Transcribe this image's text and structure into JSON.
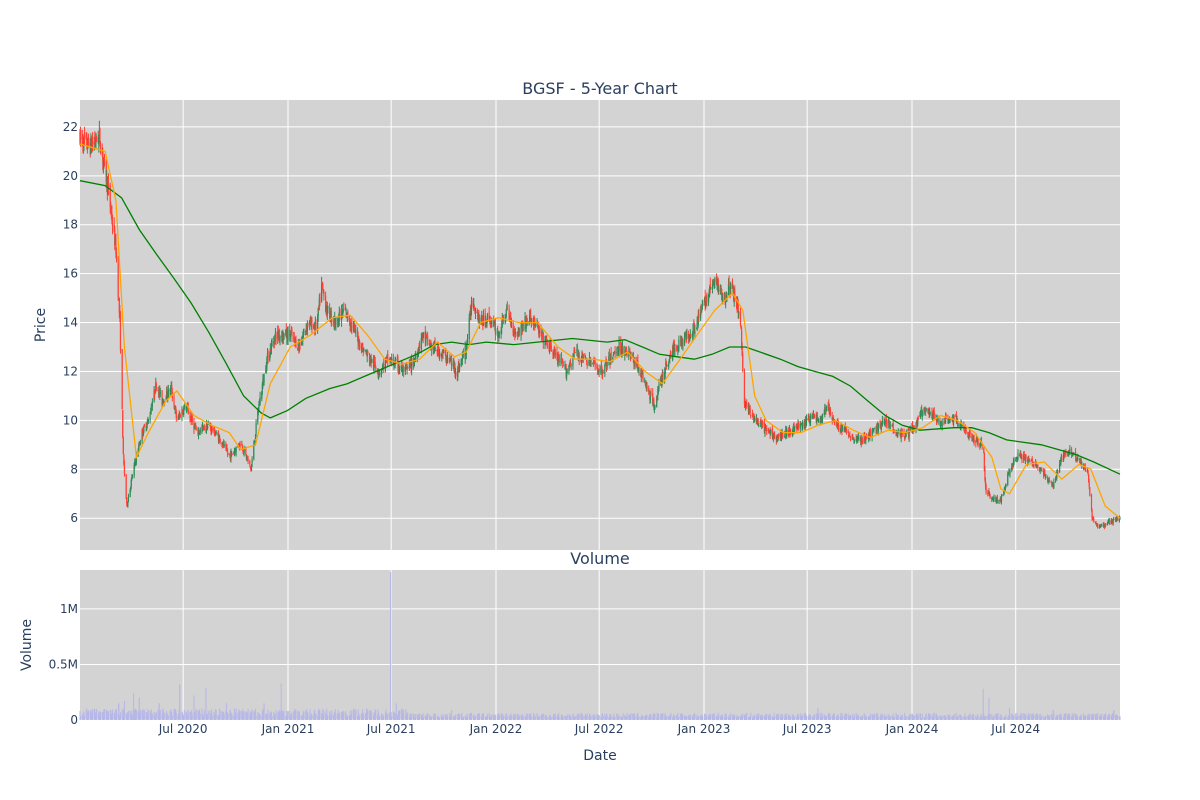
{
  "chart_data": [
    {
      "type": "candlestick",
      "title": "BGSF - 5-Year Chart",
      "ylabel": "Price",
      "xlabel": "",
      "x_range": [
        "2020-01-02",
        "2024-12-31"
      ],
      "ylim": [
        4.7,
        23.1
      ],
      "yticks": [
        6,
        8,
        10,
        12,
        14,
        16,
        18,
        20,
        22
      ],
      "grid": true,
      "background": "#d3d3d3",
      "up_color": "#2e8b57",
      "down_color": "#ff4136",
      "ma_short_color": "#ffa500",
      "ma_long_color": "#008000",
      "price_anchors": [
        [
          "2020-01-02",
          21.5
        ],
        [
          "2020-01-20",
          21.2
        ],
        [
          "2020-02-05",
          21.6
        ],
        [
          "2020-02-20",
          19.5
        ],
        [
          "2020-03-05",
          17.0
        ],
        [
          "2020-03-12",
          14.0
        ],
        [
          "2020-03-18",
          8.5
        ],
        [
          "2020-03-24",
          6.5
        ],
        [
          "2020-04-05",
          8.0
        ],
        [
          "2020-04-20",
          9.5
        ],
        [
          "2020-05-01",
          10.0
        ],
        [
          "2020-05-15",
          11.5
        ],
        [
          "2020-05-25",
          10.8
        ],
        [
          "2020-06-10",
          11.3
        ],
        [
          "2020-06-20",
          10.0
        ],
        [
          "2020-07-05",
          10.6
        ],
        [
          "2020-07-25",
          9.5
        ],
        [
          "2020-08-15",
          9.8
        ],
        [
          "2020-09-05",
          9.2
        ],
        [
          "2020-09-20",
          8.5
        ],
        [
          "2020-10-10",
          9.1
        ],
        [
          "2020-10-28",
          8.0
        ],
        [
          "2020-11-10",
          10.5
        ],
        [
          "2020-11-25",
          12.5
        ],
        [
          "2020-12-10",
          13.5
        ],
        [
          "2021-01-05",
          13.5
        ],
        [
          "2021-01-20",
          13.0
        ],
        [
          "2021-02-05",
          14.0
        ],
        [
          "2021-02-20",
          13.8
        ],
        [
          "2021-03-01",
          15.5
        ],
        [
          "2021-03-10",
          14.5
        ],
        [
          "2021-03-25",
          14.0
        ],
        [
          "2021-04-10",
          14.5
        ],
        [
          "2021-04-25",
          13.8
        ],
        [
          "2021-05-10",
          13.0
        ],
        [
          "2021-05-25",
          12.5
        ],
        [
          "2021-06-10",
          12.0
        ],
        [
          "2021-06-25",
          12.5
        ],
        [
          "2021-07-10",
          12.3
        ],
        [
          "2021-07-25",
          12.0
        ],
        [
          "2021-08-10",
          12.4
        ],
        [
          "2021-08-25",
          13.5
        ],
        [
          "2021-09-10",
          13.0
        ],
        [
          "2021-09-25",
          12.8
        ],
        [
          "2021-10-10",
          12.5
        ],
        [
          "2021-10-25",
          12.0
        ],
        [
          "2021-11-10",
          13.0
        ],
        [
          "2021-11-20",
          15.0
        ],
        [
          "2021-12-05",
          14.0
        ],
        [
          "2021-12-20",
          14.2
        ],
        [
          "2022-01-05",
          13.5
        ],
        [
          "2022-01-20",
          14.5
        ],
        [
          "2022-02-05",
          13.5
        ],
        [
          "2022-02-20",
          14.0
        ],
        [
          "2022-03-05",
          14.2
        ],
        [
          "2022-03-20",
          13.5
        ],
        [
          "2022-04-05",
          13.0
        ],
        [
          "2022-04-20",
          12.5
        ],
        [
          "2022-05-05",
          12.0
        ],
        [
          "2022-05-20",
          12.8
        ],
        [
          "2022-06-05",
          12.5
        ],
        [
          "2022-06-20",
          12.3
        ],
        [
          "2022-07-05",
          12.0
        ],
        [
          "2022-07-20",
          12.5
        ],
        [
          "2022-08-05",
          13.0
        ],
        [
          "2022-08-20",
          12.8
        ],
        [
          "2022-09-05",
          12.3
        ],
        [
          "2022-09-20",
          11.5
        ],
        [
          "2022-10-05",
          10.6
        ],
        [
          "2022-10-20",
          11.8
        ],
        [
          "2022-11-05",
          12.8
        ],
        [
          "2022-11-20",
          13.2
        ],
        [
          "2022-12-05",
          13.5
        ],
        [
          "2022-12-20",
          14.0
        ],
        [
          "2023-01-05",
          15.0
        ],
        [
          "2023-01-20",
          15.7
        ],
        [
          "2023-02-05",
          15.0
        ],
        [
          "2023-02-15",
          15.5
        ],
        [
          "2023-02-28",
          14.8
        ],
        [
          "2023-03-07",
          13.8
        ],
        [
          "2023-03-12",
          10.8
        ],
        [
          "2023-03-25",
          10.2
        ],
        [
          "2023-04-10",
          9.8
        ],
        [
          "2023-04-25",
          9.5
        ],
        [
          "2023-05-10",
          9.3
        ],
        [
          "2023-05-25",
          9.5
        ],
        [
          "2023-06-10",
          9.7
        ],
        [
          "2023-06-25",
          9.8
        ],
        [
          "2023-07-10",
          10.2
        ],
        [
          "2023-07-25",
          10.0
        ],
        [
          "2023-08-05",
          10.6
        ],
        [
          "2023-08-20",
          9.8
        ],
        [
          "2023-09-05",
          9.6
        ],
        [
          "2023-09-20",
          9.3
        ],
        [
          "2023-10-05",
          9.2
        ],
        [
          "2023-10-20",
          9.4
        ],
        [
          "2023-11-05",
          9.8
        ],
        [
          "2023-11-20",
          10.0
        ],
        [
          "2023-12-05",
          9.5
        ],
        [
          "2023-12-20",
          9.4
        ],
        [
          "2024-01-05",
          9.7
        ],
        [
          "2024-01-20",
          10.4
        ],
        [
          "2024-02-05",
          10.2
        ],
        [
          "2024-02-20",
          9.9
        ],
        [
          "2024-03-05",
          10.1
        ],
        [
          "2024-03-20",
          10.0
        ],
        [
          "2024-04-05",
          9.5
        ],
        [
          "2024-04-20",
          9.2
        ],
        [
          "2024-05-05",
          9.0
        ],
        [
          "2024-05-09",
          7.2
        ],
        [
          "2024-05-20",
          6.8
        ],
        [
          "2024-06-05",
          6.7
        ],
        [
          "2024-06-20",
          8.0
        ],
        [
          "2024-07-05",
          8.6
        ],
        [
          "2024-07-20",
          8.4
        ],
        [
          "2024-08-05",
          8.2
        ],
        [
          "2024-08-20",
          7.8
        ],
        [
          "2024-09-05",
          7.3
        ],
        [
          "2024-09-20",
          8.5
        ],
        [
          "2024-10-05",
          8.8
        ],
        [
          "2024-10-20",
          8.4
        ],
        [
          "2024-11-05",
          7.8
        ],
        [
          "2024-11-12",
          6.0
        ],
        [
          "2024-11-25",
          5.6
        ],
        [
          "2024-12-10",
          5.8
        ],
        [
          "2024-12-31",
          6.0
        ]
      ],
      "ma_short_anchors": [
        [
          "2020-01-02",
          21.3
        ],
        [
          "2020-02-15",
          21.0
        ],
        [
          "2020-03-05",
          19.0
        ],
        [
          "2020-03-20",
          13.0
        ],
        [
          "2020-04-10",
          8.5
        ],
        [
          "2020-05-01",
          9.5
        ],
        [
          "2020-06-01",
          10.8
        ],
        [
          "2020-06-20",
          11.2
        ],
        [
          "2020-07-20",
          10.2
        ],
        [
          "2020-08-20",
          9.8
        ],
        [
          "2020-09-20",
          9.5
        ],
        [
          "2020-10-10",
          8.8
        ],
        [
          "2020-11-05",
          9.0
        ],
        [
          "2020-12-01",
          11.5
        ],
        [
          "2021-01-05",
          13.0
        ],
        [
          "2021-02-10",
          13.5
        ],
        [
          "2021-03-20",
          14.2
        ],
        [
          "2021-04-20",
          14.3
        ],
        [
          "2021-05-20",
          13.5
        ],
        [
          "2021-06-20",
          12.5
        ],
        [
          "2021-07-20",
          12.3
        ],
        [
          "2021-08-20",
          12.5
        ],
        [
          "2021-09-20",
          13.2
        ],
        [
          "2021-10-20",
          12.6
        ],
        [
          "2021-11-10",
          12.8
        ],
        [
          "2021-12-05",
          14.0
        ],
        [
          "2022-01-05",
          14.2
        ],
        [
          "2022-02-10",
          14.0
        ],
        [
          "2022-03-15",
          14.0
        ],
        [
          "2022-04-20",
          13.0
        ],
        [
          "2022-05-20",
          12.5
        ],
        [
          "2022-06-20",
          12.5
        ],
        [
          "2022-07-20",
          12.4
        ],
        [
          "2022-08-20",
          12.8
        ],
        [
          "2022-09-20",
          12.0
        ],
        [
          "2022-10-20",
          11.5
        ],
        [
          "2022-11-20",
          12.5
        ],
        [
          "2022-12-20",
          13.5
        ],
        [
          "2023-01-20",
          14.5
        ],
        [
          "2023-02-20",
          15.2
        ],
        [
          "2023-03-10",
          14.5
        ],
        [
          "2023-03-31",
          11.0
        ],
        [
          "2023-04-20",
          10.0
        ],
        [
          "2023-05-20",
          9.5
        ],
        [
          "2023-06-20",
          9.5
        ],
        [
          "2023-07-20",
          9.8
        ],
        [
          "2023-08-20",
          10.0
        ],
        [
          "2023-09-20",
          9.6
        ],
        [
          "2023-10-20",
          9.3
        ],
        [
          "2023-11-20",
          9.6
        ],
        [
          "2023-12-20",
          9.5
        ],
        [
          "2024-01-20",
          9.7
        ],
        [
          "2024-02-20",
          10.2
        ],
        [
          "2024-03-20",
          10.0
        ],
        [
          "2024-04-20",
          9.5
        ],
        [
          "2024-05-20",
          8.5
        ],
        [
          "2024-06-05",
          7.2
        ],
        [
          "2024-06-20",
          7.0
        ],
        [
          "2024-07-20",
          8.2
        ],
        [
          "2024-08-20",
          8.3
        ],
        [
          "2024-09-20",
          7.6
        ],
        [
          "2024-10-20",
          8.2
        ],
        [
          "2024-11-10",
          8.0
        ],
        [
          "2024-12-05",
          6.5
        ],
        [
          "2024-12-31",
          6.0
        ]
      ],
      "ma_long_anchors": [
        [
          "2020-01-02",
          19.8
        ],
        [
          "2020-02-15",
          19.6
        ],
        [
          "2020-03-15",
          19.1
        ],
        [
          "2020-04-15",
          17.8
        ],
        [
          "2020-05-15",
          16.8
        ],
        [
          "2020-06-15",
          15.8
        ],
        [
          "2020-07-15",
          14.8
        ],
        [
          "2020-08-15",
          13.6
        ],
        [
          "2020-09-15",
          12.3
        ],
        [
          "2020-10-15",
          11.0
        ],
        [
          "2020-11-15",
          10.3
        ],
        [
          "2020-12-01",
          10.1
        ],
        [
          "2020-12-31",
          10.4
        ],
        [
          "2021-02-01",
          10.9
        ],
        [
          "2021-03-15",
          11.3
        ],
        [
          "2021-04-15",
          11.5
        ],
        [
          "2021-05-15",
          11.8
        ],
        [
          "2021-06-15",
          12.1
        ],
        [
          "2021-07-15",
          12.4
        ],
        [
          "2021-08-15",
          12.7
        ],
        [
          "2021-09-15",
          13.1
        ],
        [
          "2021-10-15",
          13.2
        ],
        [
          "2021-11-15",
          13.1
        ],
        [
          "2021-12-15",
          13.2
        ],
        [
          "2022-02-01",
          13.1
        ],
        [
          "2022-03-15",
          13.2
        ],
        [
          "2022-05-15",
          13.35
        ],
        [
          "2022-07-15",
          13.2
        ],
        [
          "2022-08-15",
          13.3
        ],
        [
          "2022-09-15",
          13.0
        ],
        [
          "2022-10-15",
          12.7
        ],
        [
          "2022-11-15",
          12.6
        ],
        [
          "2022-12-15",
          12.5
        ],
        [
          "2023-01-15",
          12.7
        ],
        [
          "2023-02-15",
          13.0
        ],
        [
          "2023-03-15",
          13.0
        ],
        [
          "2023-05-15",
          12.5
        ],
        [
          "2023-06-15",
          12.2
        ],
        [
          "2023-07-15",
          12.0
        ],
        [
          "2023-08-15",
          11.8
        ],
        [
          "2023-09-15",
          11.4
        ],
        [
          "2023-10-15",
          10.8
        ],
        [
          "2023-11-15",
          10.2
        ],
        [
          "2023-12-15",
          9.8
        ],
        [
          "2024-01-15",
          9.6
        ],
        [
          "2024-03-15",
          9.7
        ],
        [
          "2024-04-15",
          9.7
        ],
        [
          "2024-05-15",
          9.5
        ],
        [
          "2024-06-15",
          9.2
        ],
        [
          "2024-08-15",
          9.0
        ],
        [
          "2024-09-15",
          8.8
        ],
        [
          "2024-10-15",
          8.6
        ],
        [
          "2024-11-15",
          8.3
        ],
        [
          "2024-12-31",
          7.8
        ]
      ]
    },
    {
      "type": "bar",
      "title": "Volume",
      "ylabel": "Volume",
      "xlabel": "Date",
      "ylim": [
        0,
        1350000
      ],
      "yticks": [
        0,
        500000,
        1000000
      ],
      "ytick_labels": [
        "0",
        "0.5M",
        "1M"
      ],
      "xticks": [
        "2020-07-01",
        "2021-01-01",
        "2021-07-01",
        "2022-01-01",
        "2022-07-01",
        "2023-01-01",
        "2023-07-01",
        "2024-01-01",
        "2024-07-01"
      ],
      "xtick_labels": [
        "Jul 2020",
        "Jan 2021",
        "Jul 2021",
        "Jan 2022",
        "Jul 2022",
        "Jan 2023",
        "Jul 2023",
        "Jan 2024",
        "Jul 2024"
      ],
      "bar_color": "#b7b7e8",
      "background": "#d3d3d3",
      "volume_spikes": [
        [
          "2020-03-10",
          150000
        ],
        [
          "2020-03-20",
          170000
        ],
        [
          "2020-04-05",
          240000
        ],
        [
          "2020-04-15",
          200000
        ],
        [
          "2020-05-20",
          150000
        ],
        [
          "2020-06-25",
          320000
        ],
        [
          "2020-07-20",
          220000
        ],
        [
          "2020-08-10",
          290000
        ],
        [
          "2020-09-15",
          150000
        ],
        [
          "2020-11-20",
          150000
        ],
        [
          "2020-12-20",
          330000
        ],
        [
          "2021-06-30",
          1330000
        ],
        [
          "2021-07-10",
          150000
        ],
        [
          "2021-10-15",
          90000
        ],
        [
          "2023-07-20",
          110000
        ],
        [
          "2024-05-05",
          280000
        ],
        [
          "2024-05-15",
          200000
        ],
        [
          "2024-06-20",
          110000
        ],
        [
          "2024-09-05",
          90000
        ],
        [
          "2024-12-20",
          90000
        ]
      ]
    }
  ]
}
